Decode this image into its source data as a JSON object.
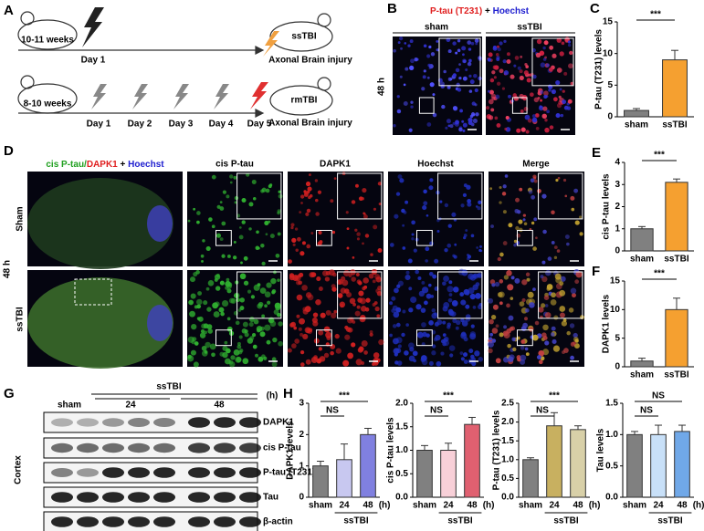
{
  "figure": {
    "panel_labels": [
      "A",
      "B",
      "C",
      "D",
      "E",
      "F",
      "G",
      "H"
    ],
    "schematic": {
      "single": {
        "age": "10-11 weeks",
        "day": "Day 1",
        "model": "ssTBI",
        "outcome": "Axonal Brain injury"
      },
      "repeated": {
        "age": "8-10 weeks",
        "days": [
          "Day 1",
          "Day 2",
          "Day 3",
          "Day 4",
          "Day 5"
        ],
        "model": "rmTBI",
        "outcome": "Axonal Brain injury"
      }
    },
    "panel_b": {
      "title": [
        "P-tau (T231)",
        "+",
        "Hoechst"
      ],
      "columns": [
        "sham",
        "ssTBI"
      ],
      "time": "48 h"
    },
    "panel_d": {
      "title": [
        "cis P-tau/",
        "DAPK1",
        "+",
        "Hoechst"
      ],
      "columns": [
        "cis P-tau",
        "DAPK1",
        "Hoechst",
        "Merge"
      ],
      "rows": [
        "Sham",
        "ssTBI"
      ],
      "time": "48 h"
    },
    "panel_g": {
      "group": "ssTBI",
      "lanes": [
        "sham",
        "24",
        "48"
      ],
      "unit": "(h)",
      "rows": [
        "DAPK1",
        "cis P-tau",
        "P-tau (T231)",
        "Tau",
        "β-actin"
      ],
      "tissue": "Cortex"
    }
  },
  "chart_data": [
    {
      "type": "bar",
      "ylabel": "P-tau (T231) levels",
      "categories": [
        "sham",
        "ssTBI"
      ],
      "values": [
        1,
        9
      ],
      "errors": [
        0.3,
        1.5
      ],
      "colors": [
        "#808080",
        "#f5a030"
      ],
      "ylim": [
        0,
        15
      ],
      "yticks": [
        0,
        5,
        10,
        15
      ],
      "annotations": [
        "***"
      ]
    },
    {
      "type": "bar",
      "ylabel": "cis P-tau levels",
      "categories": [
        "sham",
        "ssTBI"
      ],
      "values": [
        1.0,
        3.1
      ],
      "errors": [
        0.1,
        0.15
      ],
      "colors": [
        "#808080",
        "#f5a030"
      ],
      "ylim": [
        0,
        4
      ],
      "yticks": [
        0,
        1,
        2,
        3,
        4
      ],
      "annotations": [
        "***"
      ]
    },
    {
      "type": "bar",
      "ylabel": "DAPK1 levels",
      "categories": [
        "sham",
        "ssTBI"
      ],
      "values": [
        1,
        10
      ],
      "errors": [
        0.5,
        2
      ],
      "colors": [
        "#808080",
        "#f5a030"
      ],
      "ylim": [
        0,
        15
      ],
      "yticks": [
        0,
        5,
        10,
        15
      ],
      "annotations": [
        "***"
      ]
    },
    {
      "type": "bar",
      "ylabel": "DAPK1 levels",
      "categories": [
        "sham",
        "24",
        "48"
      ],
      "x_unit": "(h)",
      "group_label": "ssTBI",
      "values": [
        1.0,
        1.2,
        2.0
      ],
      "errors": [
        0.15,
        0.5,
        0.2
      ],
      "colors": [
        "#808080",
        "#c8c8f0",
        "#8080e0"
      ],
      "ylim": [
        0,
        3
      ],
      "yticks": [
        0,
        1,
        2,
        3
      ],
      "annotations": [
        "NS",
        "***"
      ]
    },
    {
      "type": "bar",
      "ylabel": "cis P-tau levels",
      "categories": [
        "sham",
        "24",
        "48"
      ],
      "x_unit": "(h)",
      "group_label": "ssTBI",
      "values": [
        1.0,
        1.0,
        1.55
      ],
      "errors": [
        0.1,
        0.15,
        0.15
      ],
      "colors": [
        "#808080",
        "#f8d0d8",
        "#e06070"
      ],
      "ylim": [
        0,
        2
      ],
      "yticks": [
        {
          "value": 0,
          "label": "0.0"
        },
        {
          "value": 0.5,
          "label": "0.5"
        },
        {
          "value": 1,
          "label": "1.0"
        },
        {
          "value": 1.5,
          "label": "1.5"
        },
        {
          "value": 2,
          "label": "2.0"
        }
      ],
      "annotations": [
        "NS",
        "***"
      ]
    },
    {
      "type": "bar",
      "ylabel": "P-tau (T231) levels",
      "categories": [
        "sham",
        "24",
        "48"
      ],
      "x_unit": "(h)",
      "group_label": "ssTBI",
      "values": [
        1.0,
        1.9,
        1.8
      ],
      "errors": [
        0.05,
        0.35,
        0.1
      ],
      "colors": [
        "#808080",
        "#c8b060",
        "#d8d0a8"
      ],
      "ylim": [
        0,
        2.5
      ],
      "yticks": [
        {
          "value": 0,
          "label": "0.0"
        },
        {
          "value": 0.5,
          "label": "0.5"
        },
        {
          "value": 1,
          "label": "1.0"
        },
        {
          "value": 1.5,
          "label": "1.5"
        },
        {
          "value": 2,
          "label": "2.0"
        },
        {
          "value": 2.5,
          "label": "2.5"
        }
      ],
      "annotations": [
        "NS",
        "***"
      ]
    },
    {
      "type": "bar",
      "ylabel": "Tau levels",
      "categories": [
        "sham",
        "24",
        "48"
      ],
      "x_unit": "(h)",
      "group_label": "ssTBI",
      "values": [
        1.0,
        1.0,
        1.05
      ],
      "errors": [
        0.05,
        0.15,
        0.1
      ],
      "colors": [
        "#808080",
        "#c8e0f8",
        "#70a8e8"
      ],
      "ylim": [
        0,
        1.5
      ],
      "yticks": [
        {
          "value": 0,
          "label": "0.0"
        },
        {
          "value": 0.5,
          "label": "0.5"
        },
        {
          "value": 1,
          "label": "1.0"
        },
        {
          "value": 1.5,
          "label": "1.5"
        }
      ],
      "annotations": [
        "NS",
        "NS"
      ]
    }
  ]
}
